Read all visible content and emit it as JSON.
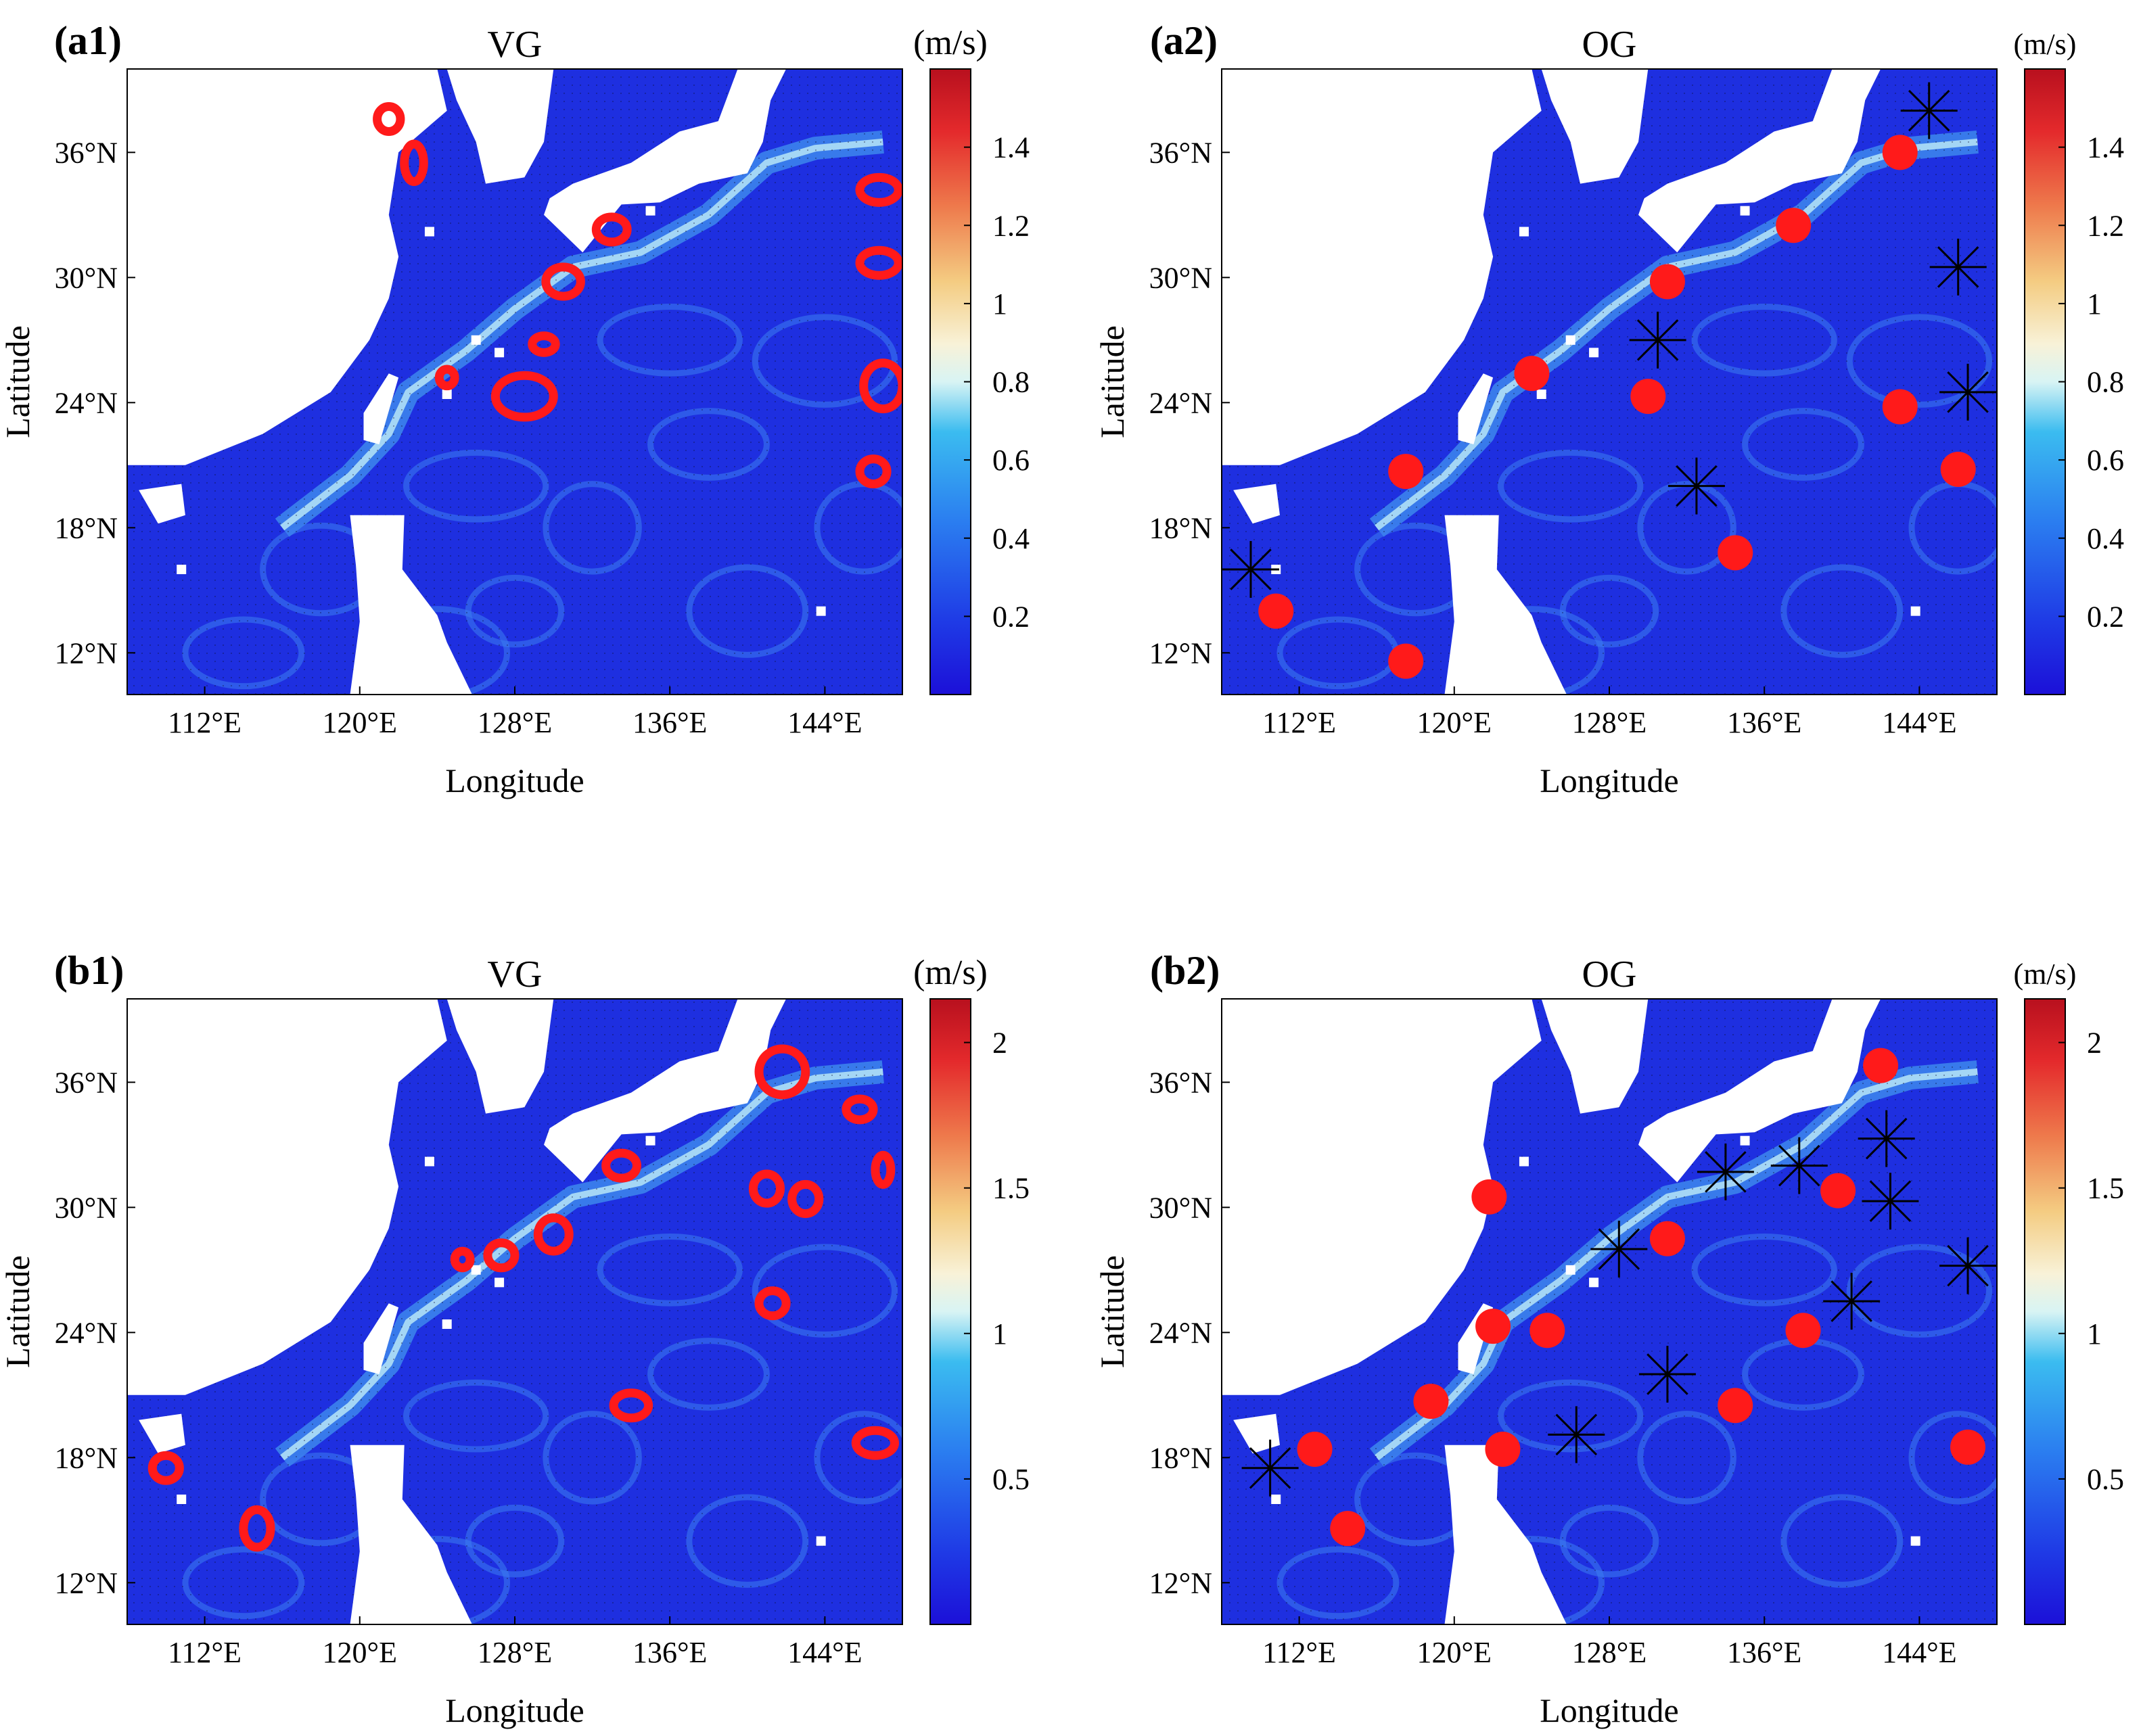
{
  "chart_data": [
    {
      "type": "heatmap",
      "panel_label": "(a1)",
      "title": "VG",
      "xlabel": "Longitude",
      "ylabel": "Latitude",
      "xlim": [
        108,
        148
      ],
      "ylim": [
        10,
        40
      ],
      "x_ticks": [
        112,
        120,
        128,
        136,
        144
      ],
      "x_tick_labels": [
        "112°E",
        "120°E",
        "128°E",
        "136°E",
        "144°E"
      ],
      "y_ticks": [
        12,
        18,
        24,
        30,
        36
      ],
      "y_tick_labels": [
        "12°N",
        "18°N",
        "24°N",
        "30°N",
        "36°N"
      ],
      "colorbar": {
        "unit": "(m/s)",
        "range": [
          0,
          1.6
        ],
        "ticks": [
          0.2,
          0.4,
          0.6,
          0.8,
          1,
          1.2,
          1.4
        ],
        "tick_labels": [
          "0.2",
          "0.4",
          "0.6",
          "0.8",
          "1",
          "1.2",
          "1.4"
        ]
      },
      "eddies": [
        {
          "lon": 121.5,
          "lat": 37.6,
          "rx": 0.6,
          "ry": 0.6
        },
        {
          "lon": 122.8,
          "lat": 35.5,
          "rx": 0.5,
          "ry": 0.9
        },
        {
          "lon": 124.5,
          "lat": 25.2,
          "rx": 0.4,
          "ry": 0.4
        },
        {
          "lon": 133.0,
          "lat": 32.3,
          "rx": 0.8,
          "ry": 0.6
        },
        {
          "lon": 130.5,
          "lat": 29.8,
          "rx": 0.9,
          "ry": 0.7
        },
        {
          "lon": 129.5,
          "lat": 26.8,
          "rx": 0.6,
          "ry": 0.4
        },
        {
          "lon": 128.5,
          "lat": 24.3,
          "rx": 1.5,
          "ry": 1.0
        },
        {
          "lon": 146.8,
          "lat": 34.2,
          "rx": 1.0,
          "ry": 0.6
        },
        {
          "lon": 146.8,
          "lat": 30.7,
          "rx": 1.0,
          "ry": 0.6
        },
        {
          "lon": 147.0,
          "lat": 24.8,
          "rx": 1.0,
          "ry": 1.1
        },
        {
          "lon": 146.5,
          "lat": 20.7,
          "rx": 0.7,
          "ry": 0.6
        }
      ],
      "detections": [],
      "missed": []
    },
    {
      "type": "heatmap",
      "panel_label": "(a2)",
      "title": "OG",
      "xlabel": "Longitude",
      "ylabel": "Latitude",
      "xlim": [
        108,
        148
      ],
      "ylim": [
        10,
        40
      ],
      "x_ticks": [
        112,
        120,
        128,
        136,
        144
      ],
      "x_tick_labels": [
        "112°E",
        "120°E",
        "128°E",
        "136°E",
        "144°E"
      ],
      "y_ticks": [
        12,
        18,
        24,
        30,
        36
      ],
      "y_tick_labels": [
        "12°N",
        "18°N",
        "24°N",
        "30°N",
        "36°N"
      ],
      "colorbar": {
        "unit": "(m/s)",
        "range": [
          0,
          1.6
        ],
        "ticks": [
          0.2,
          0.4,
          0.6,
          0.8,
          1,
          1.2,
          1.4
        ],
        "tick_labels": [
          "0.2",
          "0.4",
          "0.6",
          "0.8",
          "1",
          "1.2",
          "1.4"
        ]
      },
      "eddies": [],
      "detections": [
        {
          "lon": 143.0,
          "lat": 36.0
        },
        {
          "lon": 137.5,
          "lat": 32.5
        },
        {
          "lon": 131.0,
          "lat": 29.8
        },
        {
          "lon": 124.0,
          "lat": 25.4
        },
        {
          "lon": 130.0,
          "lat": 24.3
        },
        {
          "lon": 143.0,
          "lat": 23.8
        },
        {
          "lon": 117.5,
          "lat": 20.7
        },
        {
          "lon": 146.0,
          "lat": 20.8
        },
        {
          "lon": 134.5,
          "lat": 16.8
        },
        {
          "lon": 110.8,
          "lat": 14.0
        },
        {
          "lon": 117.5,
          "lat": 11.6
        }
      ],
      "missed": [
        {
          "lon": 144.5,
          "lat": 38.0
        },
        {
          "lon": 146.0,
          "lat": 30.5
        },
        {
          "lon": 130.5,
          "lat": 27.0
        },
        {
          "lon": 146.5,
          "lat": 24.5
        },
        {
          "lon": 132.5,
          "lat": 20.0
        },
        {
          "lon": 109.5,
          "lat": 16.0
        }
      ]
    },
    {
      "type": "heatmap",
      "panel_label": "(b1)",
      "title": "VG",
      "xlabel": "Longitude",
      "ylabel": "Latitude",
      "xlim": [
        108,
        148
      ],
      "ylim": [
        10,
        40
      ],
      "x_ticks": [
        112,
        120,
        128,
        136,
        144
      ],
      "x_tick_labels": [
        "112°E",
        "120°E",
        "128°E",
        "136°E",
        "144°E"
      ],
      "y_ticks": [
        12,
        18,
        24,
        30,
        36
      ],
      "y_tick_labels": [
        "12°N",
        "18°N",
        "24°N",
        "30°N",
        "36°N"
      ],
      "colorbar": {
        "unit": "(m/s)",
        "range": [
          0,
          2.15
        ],
        "ticks": [
          0.5,
          1,
          1.5,
          2
        ],
        "tick_labels": [
          "0.5",
          "1",
          "1.5",
          "2"
        ]
      },
      "eddies": [
        {
          "lon": 141.8,
          "lat": 36.5,
          "rx": 1.2,
          "ry": 1.1
        },
        {
          "lon": 145.8,
          "lat": 34.7,
          "rx": 0.7,
          "ry": 0.5
        },
        {
          "lon": 133.5,
          "lat": 32.0,
          "rx": 0.8,
          "ry": 0.6
        },
        {
          "lon": 147.0,
          "lat": 31.8,
          "rx": 0.4,
          "ry": 0.7
        },
        {
          "lon": 141.0,
          "lat": 30.9,
          "rx": 0.7,
          "ry": 0.7
        },
        {
          "lon": 143.0,
          "lat": 30.4,
          "rx": 0.7,
          "ry": 0.7
        },
        {
          "lon": 130.0,
          "lat": 28.7,
          "rx": 0.8,
          "ry": 0.8
        },
        {
          "lon": 127.3,
          "lat": 27.7,
          "rx": 0.7,
          "ry": 0.6
        },
        {
          "lon": 125.3,
          "lat": 27.5,
          "rx": 0.4,
          "ry": 0.4
        },
        {
          "lon": 141.3,
          "lat": 25.4,
          "rx": 0.7,
          "ry": 0.6
        },
        {
          "lon": 134.0,
          "lat": 20.5,
          "rx": 0.9,
          "ry": 0.6
        },
        {
          "lon": 146.6,
          "lat": 18.7,
          "rx": 1.0,
          "ry": 0.6
        },
        {
          "lon": 110.0,
          "lat": 17.5,
          "rx": 0.7,
          "ry": 0.6
        },
        {
          "lon": 114.7,
          "lat": 14.6,
          "rx": 0.7,
          "ry": 0.9
        }
      ],
      "detections": [],
      "missed": []
    },
    {
      "type": "heatmap",
      "panel_label": "(b2)",
      "title": "OG",
      "xlabel": "Longitude",
      "ylabel": "Latitude",
      "xlim": [
        108,
        148
      ],
      "ylim": [
        10,
        40
      ],
      "x_ticks": [
        112,
        120,
        128,
        136,
        144
      ],
      "x_tick_labels": [
        "112°E",
        "120°E",
        "128°E",
        "136°E",
        "144°E"
      ],
      "y_ticks": [
        12,
        18,
        24,
        30,
        36
      ],
      "y_tick_labels": [
        "12°N",
        "18°N",
        "24°N",
        "30°N",
        "36°N"
      ],
      "colorbar": {
        "unit": "(m/s)",
        "range": [
          0,
          2.15
        ],
        "ticks": [
          0.5,
          1,
          1.5,
          2
        ],
        "tick_labels": [
          "0.5",
          "1",
          "1.5",
          "2"
        ]
      },
      "eddies": [],
      "detections": [
        {
          "lon": 142.0,
          "lat": 36.8
        },
        {
          "lon": 121.8,
          "lat": 30.5
        },
        {
          "lon": 131.0,
          "lat": 28.5
        },
        {
          "lon": 139.8,
          "lat": 30.8
        },
        {
          "lon": 122.0,
          "lat": 24.3
        },
        {
          "lon": 124.8,
          "lat": 24.1
        },
        {
          "lon": 138.0,
          "lat": 24.1
        },
        {
          "lon": 118.8,
          "lat": 20.7
        },
        {
          "lon": 134.5,
          "lat": 20.5
        },
        {
          "lon": 112.8,
          "lat": 18.4
        },
        {
          "lon": 122.5,
          "lat": 18.4
        },
        {
          "lon": 146.5,
          "lat": 18.5
        },
        {
          "lon": 114.5,
          "lat": 14.6
        }
      ],
      "missed": [
        {
          "lon": 142.3,
          "lat": 33.3
        },
        {
          "lon": 137.8,
          "lat": 32.0
        },
        {
          "lon": 134.0,
          "lat": 31.7
        },
        {
          "lon": 142.5,
          "lat": 30.3
        },
        {
          "lon": 128.5,
          "lat": 28.0
        },
        {
          "lon": 146.5,
          "lat": 27.2
        },
        {
          "lon": 140.5,
          "lat": 25.5
        },
        {
          "lon": 131.0,
          "lat": 22.0
        },
        {
          "lon": 126.3,
          "lat": 19.1
        },
        {
          "lon": 110.5,
          "lat": 17.5
        }
      ]
    }
  ]
}
